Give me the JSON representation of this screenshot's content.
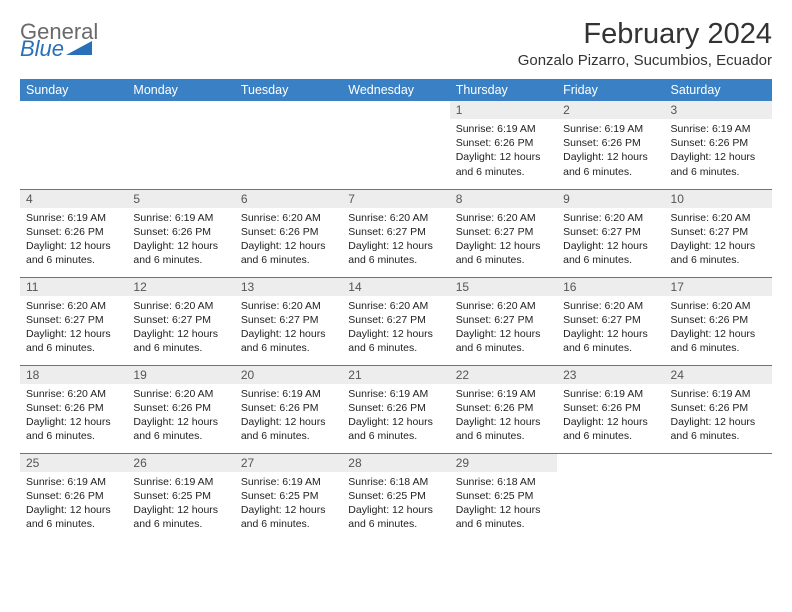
{
  "logo": {
    "line1": "General",
    "line2": "Blue"
  },
  "title": {
    "month": "February 2024",
    "location": "Gonzalo Pizarro, Sucumbios, Ecuador"
  },
  "colors": {
    "header_bg": "#3a80c4",
    "daynum_bg": "#ededed",
    "logo_gray": "#6a6a6a",
    "logo_blue": "#2a70b8"
  },
  "weekdays": [
    "Sunday",
    "Monday",
    "Tuesday",
    "Wednesday",
    "Thursday",
    "Friday",
    "Saturday"
  ],
  "weeks": [
    [
      {
        "n": "",
        "sr": "",
        "ss": "",
        "dl": ""
      },
      {
        "n": "",
        "sr": "",
        "ss": "",
        "dl": ""
      },
      {
        "n": "",
        "sr": "",
        "ss": "",
        "dl": ""
      },
      {
        "n": "",
        "sr": "",
        "ss": "",
        "dl": ""
      },
      {
        "n": "1",
        "sr": "Sunrise: 6:19 AM",
        "ss": "Sunset: 6:26 PM",
        "dl": "Daylight: 12 hours and 6 minutes."
      },
      {
        "n": "2",
        "sr": "Sunrise: 6:19 AM",
        "ss": "Sunset: 6:26 PM",
        "dl": "Daylight: 12 hours and 6 minutes."
      },
      {
        "n": "3",
        "sr": "Sunrise: 6:19 AM",
        "ss": "Sunset: 6:26 PM",
        "dl": "Daylight: 12 hours and 6 minutes."
      }
    ],
    [
      {
        "n": "4",
        "sr": "Sunrise: 6:19 AM",
        "ss": "Sunset: 6:26 PM",
        "dl": "Daylight: 12 hours and 6 minutes."
      },
      {
        "n": "5",
        "sr": "Sunrise: 6:19 AM",
        "ss": "Sunset: 6:26 PM",
        "dl": "Daylight: 12 hours and 6 minutes."
      },
      {
        "n": "6",
        "sr": "Sunrise: 6:20 AM",
        "ss": "Sunset: 6:26 PM",
        "dl": "Daylight: 12 hours and 6 minutes."
      },
      {
        "n": "7",
        "sr": "Sunrise: 6:20 AM",
        "ss": "Sunset: 6:27 PM",
        "dl": "Daylight: 12 hours and 6 minutes."
      },
      {
        "n": "8",
        "sr": "Sunrise: 6:20 AM",
        "ss": "Sunset: 6:27 PM",
        "dl": "Daylight: 12 hours and 6 minutes."
      },
      {
        "n": "9",
        "sr": "Sunrise: 6:20 AM",
        "ss": "Sunset: 6:27 PM",
        "dl": "Daylight: 12 hours and 6 minutes."
      },
      {
        "n": "10",
        "sr": "Sunrise: 6:20 AM",
        "ss": "Sunset: 6:27 PM",
        "dl": "Daylight: 12 hours and 6 minutes."
      }
    ],
    [
      {
        "n": "11",
        "sr": "Sunrise: 6:20 AM",
        "ss": "Sunset: 6:27 PM",
        "dl": "Daylight: 12 hours and 6 minutes."
      },
      {
        "n": "12",
        "sr": "Sunrise: 6:20 AM",
        "ss": "Sunset: 6:27 PM",
        "dl": "Daylight: 12 hours and 6 minutes."
      },
      {
        "n": "13",
        "sr": "Sunrise: 6:20 AM",
        "ss": "Sunset: 6:27 PM",
        "dl": "Daylight: 12 hours and 6 minutes."
      },
      {
        "n": "14",
        "sr": "Sunrise: 6:20 AM",
        "ss": "Sunset: 6:27 PM",
        "dl": "Daylight: 12 hours and 6 minutes."
      },
      {
        "n": "15",
        "sr": "Sunrise: 6:20 AM",
        "ss": "Sunset: 6:27 PM",
        "dl": "Daylight: 12 hours and 6 minutes."
      },
      {
        "n": "16",
        "sr": "Sunrise: 6:20 AM",
        "ss": "Sunset: 6:27 PM",
        "dl": "Daylight: 12 hours and 6 minutes."
      },
      {
        "n": "17",
        "sr": "Sunrise: 6:20 AM",
        "ss": "Sunset: 6:26 PM",
        "dl": "Daylight: 12 hours and 6 minutes."
      }
    ],
    [
      {
        "n": "18",
        "sr": "Sunrise: 6:20 AM",
        "ss": "Sunset: 6:26 PM",
        "dl": "Daylight: 12 hours and 6 minutes."
      },
      {
        "n": "19",
        "sr": "Sunrise: 6:20 AM",
        "ss": "Sunset: 6:26 PM",
        "dl": "Daylight: 12 hours and 6 minutes."
      },
      {
        "n": "20",
        "sr": "Sunrise: 6:19 AM",
        "ss": "Sunset: 6:26 PM",
        "dl": "Daylight: 12 hours and 6 minutes."
      },
      {
        "n": "21",
        "sr": "Sunrise: 6:19 AM",
        "ss": "Sunset: 6:26 PM",
        "dl": "Daylight: 12 hours and 6 minutes."
      },
      {
        "n": "22",
        "sr": "Sunrise: 6:19 AM",
        "ss": "Sunset: 6:26 PM",
        "dl": "Daylight: 12 hours and 6 minutes."
      },
      {
        "n": "23",
        "sr": "Sunrise: 6:19 AM",
        "ss": "Sunset: 6:26 PM",
        "dl": "Daylight: 12 hours and 6 minutes."
      },
      {
        "n": "24",
        "sr": "Sunrise: 6:19 AM",
        "ss": "Sunset: 6:26 PM",
        "dl": "Daylight: 12 hours and 6 minutes."
      }
    ],
    [
      {
        "n": "25",
        "sr": "Sunrise: 6:19 AM",
        "ss": "Sunset: 6:26 PM",
        "dl": "Daylight: 12 hours and 6 minutes."
      },
      {
        "n": "26",
        "sr": "Sunrise: 6:19 AM",
        "ss": "Sunset: 6:25 PM",
        "dl": "Daylight: 12 hours and 6 minutes."
      },
      {
        "n": "27",
        "sr": "Sunrise: 6:19 AM",
        "ss": "Sunset: 6:25 PM",
        "dl": "Daylight: 12 hours and 6 minutes."
      },
      {
        "n": "28",
        "sr": "Sunrise: 6:18 AM",
        "ss": "Sunset: 6:25 PM",
        "dl": "Daylight: 12 hours and 6 minutes."
      },
      {
        "n": "29",
        "sr": "Sunrise: 6:18 AM",
        "ss": "Sunset: 6:25 PM",
        "dl": "Daylight: 12 hours and 6 minutes."
      },
      {
        "n": "",
        "sr": "",
        "ss": "",
        "dl": ""
      },
      {
        "n": "",
        "sr": "",
        "ss": "",
        "dl": ""
      }
    ]
  ]
}
